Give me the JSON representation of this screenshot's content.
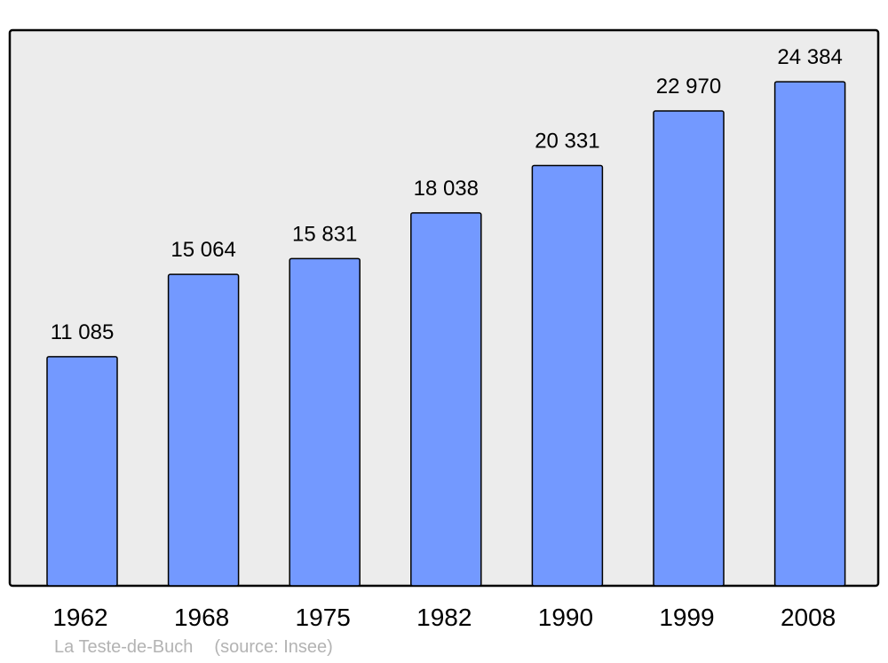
{
  "chart_data": {
    "type": "bar",
    "categories": [
      "1962",
      "1968",
      "1975",
      "1982",
      "1990",
      "1999",
      "2008"
    ],
    "values": [
      11085,
      15064,
      15831,
      18038,
      20331,
      22970,
      24384
    ],
    "data_labels": [
      "11 085",
      "15 064",
      "15 831",
      "18 038",
      "20 331",
      "22 970",
      "24 384"
    ],
    "title": "",
    "xlabel": "",
    "ylabel": "",
    "ylim": [
      0,
      26880
    ],
    "grid": false,
    "legend": "none",
    "colors": {
      "bar": "#7399ff",
      "background": "#ececec",
      "frame": "#000000",
      "footer_text": "#b3b3b3"
    }
  },
  "footer": {
    "place": "La Teste-de-Buch",
    "source": "(source: Insee)"
  }
}
